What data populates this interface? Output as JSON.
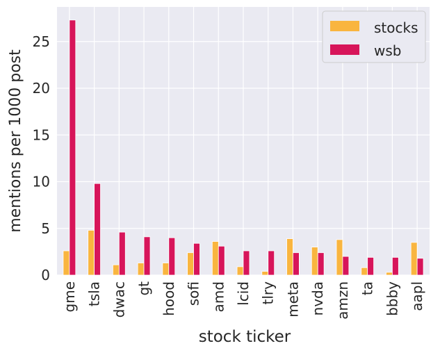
{
  "chart_data": {
    "type": "bar",
    "title": "",
    "xlabel": "stock ticker",
    "ylabel": "mentions per 1000 post",
    "ylim": [
      0,
      28.7
    ],
    "yticks": [
      0,
      5,
      10,
      15,
      20,
      25
    ],
    "grid": true,
    "legend_position": "top-right",
    "categories": [
      "gme",
      "tsla",
      "dwac",
      "gt",
      "hood",
      "sofi",
      "amd",
      "lcid",
      "tlry",
      "meta",
      "nvda",
      "amzn",
      "ta",
      "bbby",
      "aapl"
    ],
    "series": [
      {
        "name": "stocks",
        "color": "#f9b53f",
        "values": [
          2.6,
          4.8,
          1.1,
          1.3,
          1.3,
          2.4,
          3.6,
          0.9,
          0.4,
          3.9,
          3.0,
          3.8,
          0.8,
          0.3,
          3.5
        ]
      },
      {
        "name": "wsb",
        "color": "#d7155a",
        "values": [
          27.3,
          9.8,
          4.6,
          4.1,
          4.0,
          3.4,
          3.1,
          2.6,
          2.6,
          2.4,
          2.4,
          2.0,
          1.9,
          1.9,
          1.8
        ]
      }
    ],
    "style": {
      "background": "#eaeaf2",
      "grid_color": "#ffffff",
      "bar_edge": "#ffffff"
    }
  }
}
